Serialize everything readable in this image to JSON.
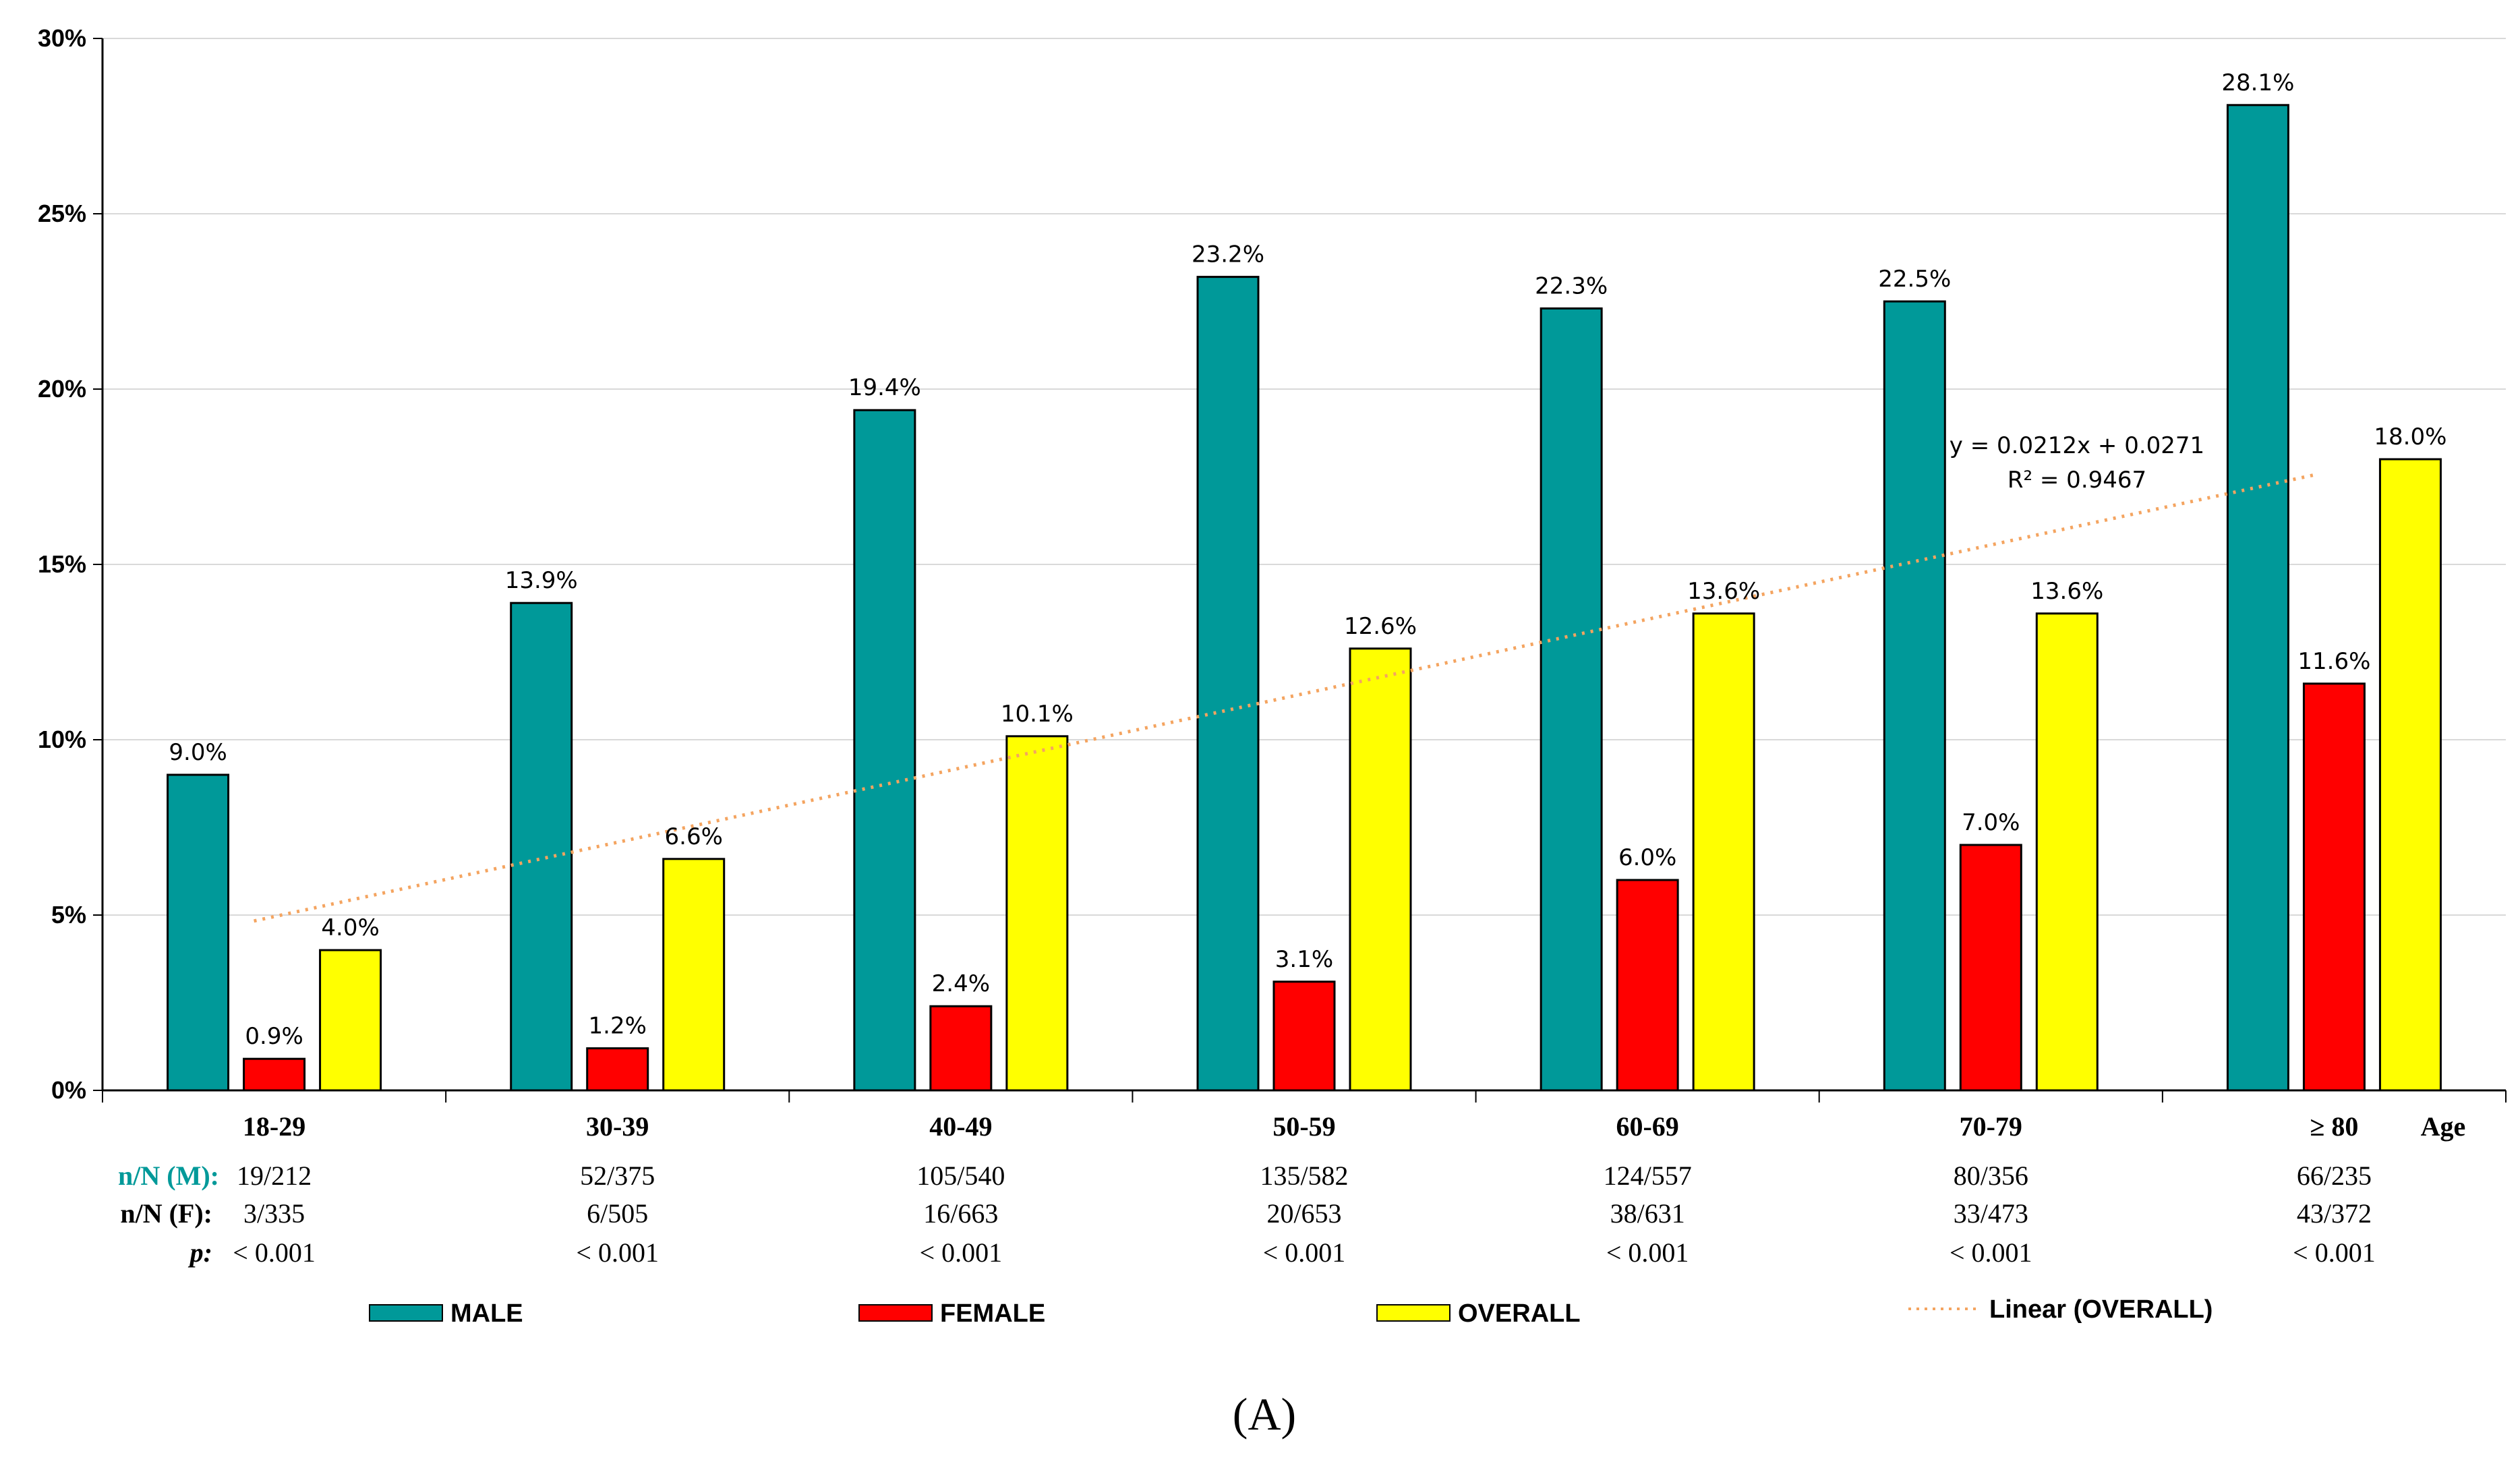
{
  "chart_data": {
    "type": "bar",
    "categories": [
      "18-29",
      "30-39",
      "40-49",
      "50-59",
      "60-69",
      "70-79",
      "≥ 80"
    ],
    "series": [
      {
        "name": "MALE",
        "color": "#009999",
        "values": [
          9.0,
          13.9,
          19.4,
          23.2,
          22.3,
          22.5,
          28.1
        ],
        "labels": [
          "9.0%",
          "13.9%",
          "19.4%",
          "23.2%",
          "22.3%",
          "22.5%",
          "28.1%"
        ]
      },
      {
        "name": "FEMALE",
        "color": "#ff0000",
        "values": [
          0.9,
          1.2,
          2.4,
          3.1,
          6.0,
          7.0,
          11.6
        ],
        "labels": [
          "0.9%",
          "1.2%",
          "2.4%",
          "3.1%",
          "6.0%",
          "7.0%",
          "11.6%"
        ]
      },
      {
        "name": "OVERALL",
        "color": "#ffff00",
        "values": [
          4.0,
          6.6,
          10.1,
          12.6,
          13.6,
          13.6,
          18.0
        ],
        "labels": [
          "4.0%",
          "6.6%",
          "10.1%",
          "12.6%",
          "13.6%",
          "13.6%",
          "18.0%"
        ]
      }
    ],
    "trendline": {
      "name": "Linear (OVERALL)",
      "color": "#f4a460",
      "slope": 0.0212,
      "intercept": 0.0271,
      "equation": "y = 0.0212x + 0.0271",
      "r2": "R² = 0.9467"
    },
    "ylim": [
      0,
      30
    ],
    "yticks": [
      0,
      5,
      10,
      15,
      20,
      25,
      30
    ],
    "ytick_labels": [
      "0%",
      "5%",
      "10%",
      "15%",
      "20%",
      "25%",
      "30%"
    ],
    "xlabel": "Age",
    "grid": true,
    "legend_position": "bottom",
    "table": {
      "row_labels": [
        "n/N (M):",
        "n/N (F):",
        "p:"
      ],
      "row_label_colors": [
        "#009999",
        "#000000",
        "#000000"
      ],
      "rows": [
        [
          "19/212",
          "52/375",
          "105/540",
          "135/582",
          "124/557",
          "80/356",
          "66/235"
        ],
        [
          "3/335",
          "6/505",
          "16/663",
          "20/653",
          "38/631",
          "33/473",
          "43/372"
        ],
        [
          "< 0.001",
          "< 0.001",
          "< 0.001",
          "< 0.001",
          "< 0.001",
          "< 0.001",
          "< 0.001"
        ]
      ]
    },
    "panel_label": "(A)"
  }
}
